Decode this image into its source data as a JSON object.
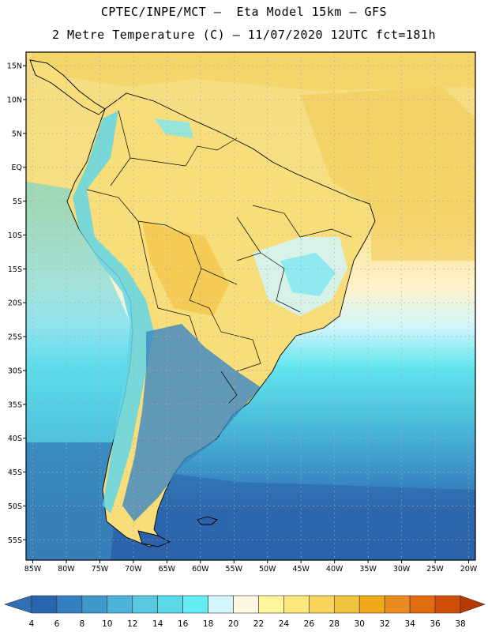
{
  "header": {
    "line1": "CPTEC/INPE/MCT –  Eta Model 15km – GFS",
    "line2": "2 Metre Temperature (C) – 11/07/2020 12UTC fct=181h"
  },
  "map": {
    "lon_range": [
      -86,
      -19
    ],
    "lat_range": [
      -58,
      17
    ],
    "grid": true,
    "lon_ticks": [
      {
        "value": -85,
        "label": "85W"
      },
      {
        "value": -80,
        "label": "80W"
      },
      {
        "value": -75,
        "label": "75W"
      },
      {
        "value": -70,
        "label": "70W"
      },
      {
        "value": -65,
        "label": "65W"
      },
      {
        "value": -60,
        "label": "60W"
      },
      {
        "value": -55,
        "label": "55W"
      },
      {
        "value": -50,
        "label": "50W"
      },
      {
        "value": -45,
        "label": "45W"
      },
      {
        "value": -40,
        "label": "40W"
      },
      {
        "value": -35,
        "label": "35W"
      },
      {
        "value": -30,
        "label": "30W"
      },
      {
        "value": -25,
        "label": "25W"
      },
      {
        "value": -20,
        "label": "20W"
      }
    ],
    "lat_ticks": [
      {
        "value": 15,
        "label": "15N"
      },
      {
        "value": 10,
        "label": "10N"
      },
      {
        "value": 5,
        "label": "5N"
      },
      {
        "value": 0,
        "label": "EQ"
      },
      {
        "value": -5,
        "label": "5S"
      },
      {
        "value": -10,
        "label": "10S"
      },
      {
        "value": -15,
        "label": "15S"
      },
      {
        "value": -20,
        "label": "20S"
      },
      {
        "value": -25,
        "label": "25S"
      },
      {
        "value": -30,
        "label": "30S"
      },
      {
        "value": -35,
        "label": "35S"
      },
      {
        "value": -40,
        "label": "40S"
      },
      {
        "value": -45,
        "label": "45S"
      },
      {
        "value": -50,
        "label": "50S"
      },
      {
        "value": -55,
        "label": "55S"
      }
    ]
  },
  "colorbar": {
    "labels": [
      "4",
      "6",
      "8",
      "10",
      "12",
      "14",
      "16",
      "18",
      "20",
      "22",
      "24",
      "26",
      "28",
      "30",
      "32",
      "34",
      "36",
      "38"
    ],
    "colors": [
      "#2a66b0",
      "#3480c0",
      "#3e99cb",
      "#4cb4d8",
      "#58c9e0",
      "#5ad9e8",
      "#62ecf3",
      "#d2f6fb",
      "#fff8e2",
      "#fff59a",
      "#fde77a",
      "#f8d45c",
      "#f0c23e",
      "#f0a818",
      "#ec8c20",
      "#e06c10",
      "#d04e08",
      "#b83804"
    ],
    "low_color": "#2f6fb2",
    "high_color": "#b83804"
  }
}
